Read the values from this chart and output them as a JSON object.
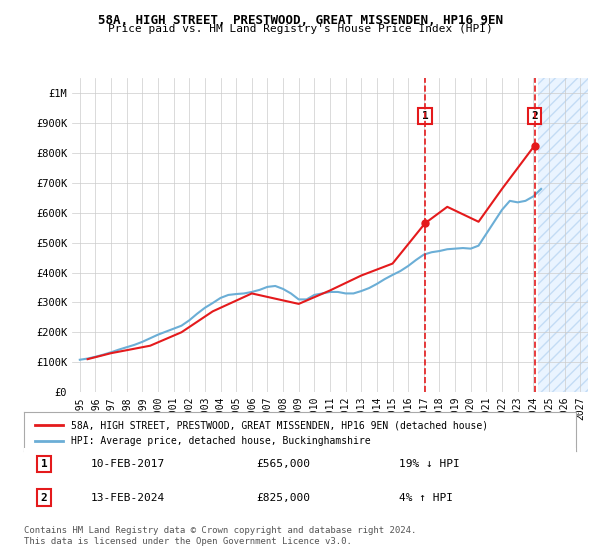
{
  "title1": "58A, HIGH STREET, PRESTWOOD, GREAT MISSENDEN, HP16 9EN",
  "title2": "Price paid vs. HM Land Registry's House Price Index (HPI)",
  "background_color": "#ffffff",
  "plot_bg_color": "#ffffff",
  "grid_color": "#cccccc",
  "hpi_color": "#6baed6",
  "price_color": "#e41a1c",
  "hpi_data": {
    "years": [
      1995.0,
      1995.5,
      1996.0,
      1996.5,
      1997.0,
      1997.5,
      1998.0,
      1998.5,
      1999.0,
      1999.5,
      2000.0,
      2000.5,
      2001.0,
      2001.5,
      2002.0,
      2002.5,
      2003.0,
      2003.5,
      2004.0,
      2004.5,
      2005.0,
      2005.5,
      2006.0,
      2006.5,
      2007.0,
      2007.5,
      2008.0,
      2008.5,
      2009.0,
      2009.5,
      2010.0,
      2010.5,
      2011.0,
      2011.5,
      2012.0,
      2012.5,
      2013.0,
      2013.5,
      2014.0,
      2014.5,
      2015.0,
      2015.5,
      2016.0,
      2016.5,
      2017.0,
      2017.5,
      2018.0,
      2018.5,
      2019.0,
      2019.5,
      2020.0,
      2020.5,
      2021.0,
      2021.5,
      2022.0,
      2022.5,
      2023.0,
      2023.5,
      2024.0,
      2024.5
    ],
    "values": [
      108000,
      112000,
      118000,
      125000,
      133000,
      142000,
      150000,
      158000,
      168000,
      180000,
      192000,
      202000,
      212000,
      222000,
      240000,
      262000,
      282000,
      298000,
      315000,
      325000,
      328000,
      330000,
      335000,
      342000,
      352000,
      355000,
      345000,
      330000,
      310000,
      310000,
      325000,
      330000,
      335000,
      335000,
      330000,
      330000,
      338000,
      348000,
      362000,
      378000,
      392000,
      405000,
      422000,
      442000,
      460000,
      468000,
      472000,
      478000,
      480000,
      482000,
      480000,
      490000,
      530000,
      570000,
      610000,
      640000,
      635000,
      640000,
      655000,
      680000
    ]
  },
  "price_data": {
    "years": [
      1995.5,
      1997.0,
      1999.5,
      2001.5,
      2003.5,
      2006.0,
      2009.0,
      2011.0,
      2013.0,
      2015.0,
      2017.08,
      2018.5,
      2020.5,
      2022.0,
      2024.08
    ],
    "values": [
      110000,
      130000,
      155000,
      200000,
      270000,
      330000,
      295000,
      340000,
      390000,
      430000,
      565000,
      620000,
      570000,
      680000,
      825000
    ]
  },
  "transaction1": {
    "year": 2017.08,
    "value": 565000,
    "label": "1",
    "date": "10-FEB-2017",
    "price": "£565,000",
    "hpi_diff": "19% ↓ HPI"
  },
  "transaction2": {
    "year": 2024.08,
    "value": 825000,
    "label": "2",
    "date": "13-FEB-2024",
    "price": "£825,000",
    "hpi_diff": "4% ↑ HPI"
  },
  "yticks": [
    0,
    100000,
    200000,
    300000,
    400000,
    500000,
    600000,
    700000,
    800000,
    900000,
    1000000
  ],
  "ytick_labels": [
    "£0",
    "£100K",
    "£200K",
    "£300K",
    "£400K",
    "£500K",
    "£600K",
    "£700K",
    "£800K",
    "£900K",
    "£1M"
  ],
  "xticks": [
    1995,
    1996,
    1997,
    1998,
    1999,
    2000,
    2001,
    2002,
    2003,
    2004,
    2005,
    2006,
    2007,
    2008,
    2009,
    2010,
    2011,
    2012,
    2013,
    2014,
    2015,
    2016,
    2017,
    2018,
    2019,
    2020,
    2021,
    2022,
    2023,
    2024,
    2025,
    2026,
    2027
  ],
  "xlim": [
    1994.5,
    2027.5
  ],
  "ylim": [
    0,
    1050000
  ],
  "legend_label1": "58A, HIGH STREET, PRESTWOOD, GREAT MISSENDEN, HP16 9EN (detached house)",
  "legend_label2": "HPI: Average price, detached house, Buckinghamshire",
  "footer": "Contains HM Land Registry data © Crown copyright and database right 2024.\nThis data is licensed under the Open Government Licence v3.0.",
  "future_shade_start": 2024.3,
  "future_shade_end": 2027.5
}
